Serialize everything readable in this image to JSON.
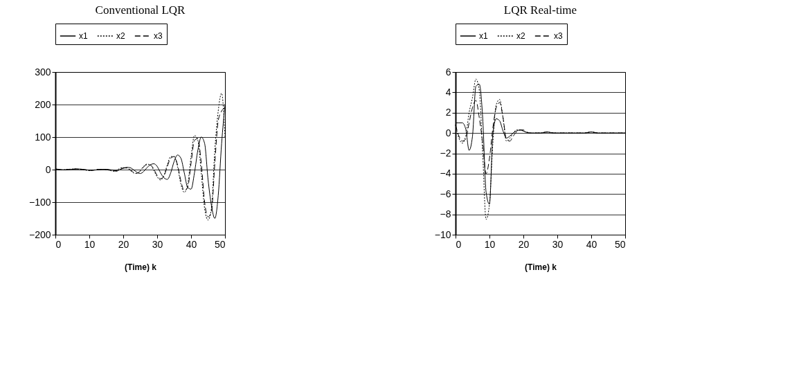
{
  "chart_data": [
    {
      "type": "line",
      "title": "Conventional LQR",
      "xlabel": "(Time) k",
      "legend": "top",
      "grid": "y",
      "xlim": [
        0,
        50
      ],
      "xticks": [
        0,
        10,
        20,
        30,
        40,
        50
      ],
      "ylim": [
        -200,
        300
      ],
      "yticks": [
        -200,
        -100,
        0,
        100,
        200,
        300
      ],
      "x": [
        0,
        1,
        2,
        3,
        4,
        5,
        6,
        7,
        8,
        9,
        10,
        11,
        12,
        13,
        14,
        15,
        16,
        17,
        18,
        19,
        20,
        21,
        22,
        23,
        24,
        25,
        26,
        27,
        28,
        29,
        30,
        31,
        32,
        33,
        34,
        35,
        36,
        37,
        38,
        39,
        40,
        41,
        42,
        43,
        44,
        45,
        46,
        47,
        48,
        49,
        50
      ],
      "series": [
        {
          "name": "x1",
          "color": "#000000",
          "line_style": "solid",
          "values": [
            2,
            1,
            0,
            -1,
            0,
            1,
            2,
            2,
            1,
            0,
            -2,
            -2,
            -1,
            0,
            1,
            1,
            0,
            -2,
            -5,
            0,
            4,
            7,
            6,
            0,
            -8,
            -12,
            -6,
            6,
            15,
            18,
            10,
            -10,
            -25,
            -30,
            -10,
            25,
            45,
            35,
            -10,
            -55,
            -60,
            -10,
            60,
            100,
            80,
            -30,
            -110,
            -150,
            -80,
            80,
            200
          ]
        },
        {
          "name": "x2",
          "color": "#000000",
          "line_style": "dotted",
          "values": [
            2,
            0,
            -1,
            0,
            1,
            2,
            2,
            1,
            0,
            -2,
            -3,
            -2,
            0,
            1,
            1,
            0,
            -2,
            -5,
            -3,
            4,
            6,
            5,
            -2,
            -10,
            -12,
            -3,
            10,
            17,
            14,
            -2,
            -22,
            -32,
            -18,
            15,
            40,
            40,
            10,
            -45,
            -70,
            -45,
            40,
            105,
            90,
            -10,
            -120,
            -155,
            -120,
            60,
            180,
            235,
            100
          ]
        },
        {
          "name": "x3",
          "color": "#000000",
          "line_style": "dashed",
          "values": [
            1,
            0,
            -1,
            0,
            1,
            1,
            2,
            1,
            0,
            -1,
            -2,
            -2,
            0,
            1,
            1,
            0,
            -2,
            -4,
            -3,
            2,
            5,
            5,
            0,
            -8,
            -11,
            -5,
            8,
            15,
            14,
            2,
            -18,
            -28,
            -20,
            10,
            35,
            40,
            15,
            -35,
            -65,
            -55,
            20,
            90,
            95,
            20,
            -100,
            -145,
            -130,
            20,
            150,
            180,
            190
          ]
        }
      ]
    },
    {
      "type": "line",
      "title": "LQR Real-time",
      "xlabel": "(Time) k",
      "legend": "top",
      "grid": "y",
      "xlim": [
        0,
        50
      ],
      "xticks": [
        0,
        10,
        20,
        30,
        40,
        50
      ],
      "ylim": [
        -10,
        6
      ],
      "yticks": [
        -10,
        -8,
        -6,
        -4,
        -2,
        0,
        2,
        4,
        6
      ],
      "x": [
        0,
        1,
        2,
        3,
        4,
        5,
        6,
        7,
        8,
        9,
        10,
        11,
        12,
        13,
        14,
        15,
        16,
        17,
        18,
        19,
        20,
        21,
        22,
        23,
        24,
        25,
        26,
        27,
        28,
        29,
        30,
        31,
        32,
        33,
        34,
        35,
        36,
        37,
        38,
        39,
        40,
        41,
        42,
        43,
        44,
        45,
        46,
        47,
        48,
        49,
        50
      ],
      "series": [
        {
          "name": "x1",
          "color": "#000000",
          "line_style": "solid",
          "values": [
            1,
            1,
            1,
            0.4,
            -1.7,
            -0.3,
            4.6,
            4.8,
            1.5,
            -5.8,
            -7,
            -0.1,
            1.4,
            1.2,
            0.2,
            -0.5,
            -0.3,
            0,
            0.2,
            0.3,
            0.2,
            0.05,
            0,
            0,
            0,
            0,
            0.05,
            0.1,
            0.05,
            0,
            0,
            0,
            0,
            0,
            0,
            0,
            0,
            0,
            0,
            0.05,
            0.1,
            0.05,
            0,
            0,
            0,
            0,
            0,
            0,
            0,
            0,
            0
          ]
        },
        {
          "name": "x2",
          "color": "#000000",
          "line_style": "dotted",
          "values": [
            0.8,
            -0.5,
            -1,
            -0.3,
            2,
            3.5,
            5.3,
            4.2,
            -2,
            -8.5,
            -7,
            -1,
            2.8,
            3.3,
            1.5,
            -0.8,
            -0.5,
            0,
            0.3,
            0.3,
            0.2,
            0.05,
            0,
            0,
            0,
            0,
            0.05,
            0.1,
            0.05,
            0,
            0,
            0,
            0,
            0,
            0,
            0,
            0,
            0,
            0,
            0.05,
            0.1,
            0.05,
            0,
            0,
            0,
            0,
            0,
            0,
            0,
            0,
            0
          ]
        },
        {
          "name": "x3",
          "color": "#000000",
          "line_style": "dashed",
          "values": [
            0.8,
            -0.3,
            -0.8,
            -0.6,
            1,
            2.5,
            3.2,
            1.5,
            -1,
            -4,
            -2.5,
            0.5,
            2.5,
            3,
            1.5,
            -0.6,
            -0.8,
            -0.3,
            0.1,
            0.3,
            0.3,
            0.1,
            0,
            0,
            0,
            0,
            0.05,
            0.1,
            0.05,
            0,
            0,
            0,
            0,
            0,
            0,
            0,
            0,
            0,
            0,
            0.05,
            0.1,
            0.05,
            0,
            0,
            0,
            0,
            0,
            0,
            0,
            0,
            0
          ]
        }
      ]
    }
  ]
}
